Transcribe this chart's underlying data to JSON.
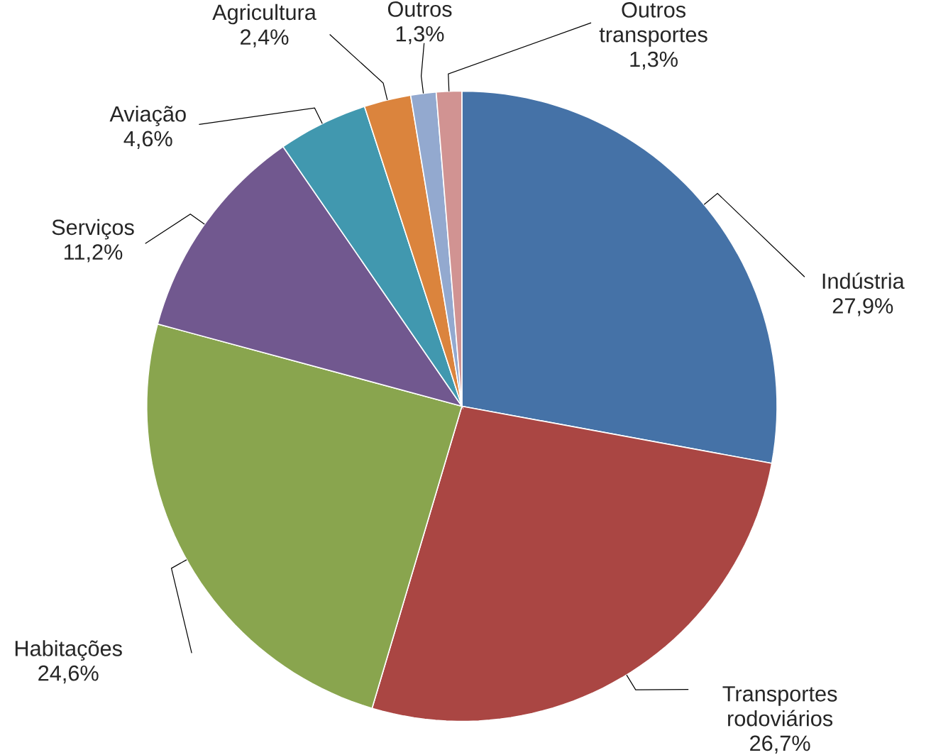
{
  "chart_data": {
    "type": "pie",
    "categories": [
      "Indústria",
      "Transportes rodoviários",
      "Habitações",
      "Serviços",
      "Aviação",
      "Agricultura",
      "Outros",
      "Outros transportes"
    ],
    "values": [
      27.9,
      26.7,
      24.6,
      11.2,
      4.6,
      2.4,
      1.3,
      1.3
    ],
    "value_labels": [
      "27,9%",
      "26,7%",
      "24,6%",
      "11,2%",
      "4,6%",
      "2,4%",
      "1,3%",
      "1,3%"
    ],
    "colors": [
      "#4572a7",
      "#aa4643",
      "#89a54e",
      "#71588f",
      "#4198af",
      "#db843d",
      "#93a9cf",
      "#d19392"
    ]
  }
}
